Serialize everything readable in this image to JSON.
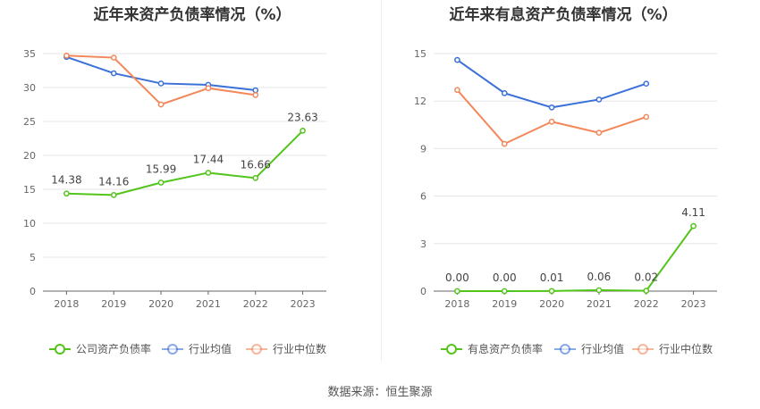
{
  "source": "数据来源：恒生聚源",
  "chart_data": [
    {
      "type": "line",
      "title": "近年来资产负债率情况（%）",
      "x": [
        "2018",
        "2019",
        "2020",
        "2021",
        "2022",
        "2023"
      ],
      "ylim": [
        0,
        35
      ],
      "yticks": [
        "0",
        "5",
        "10",
        "15",
        "20",
        "25",
        "30",
        "35"
      ],
      "grid": true,
      "legend_position": "bottom",
      "series": [
        {
          "name": "公司资产负债率",
          "color": "#52c41a",
          "values": [
            14.38,
            14.16,
            15.99,
            17.44,
            16.66,
            23.63
          ],
          "labels": [
            "14.38",
            "14.16",
            "15.99",
            "17.44",
            "16.66",
            "23.63"
          ]
        },
        {
          "name": "行业均值",
          "color": "#3a70d8",
          "values": [
            34.5,
            32.1,
            30.6,
            30.4,
            29.6,
            null
          ]
        },
        {
          "name": "行业中位数",
          "color": "#f4875a",
          "values": [
            34.7,
            34.4,
            27.5,
            29.9,
            28.9,
            null
          ]
        }
      ]
    },
    {
      "type": "line",
      "title": "近年来有息资产负债率情况（%）",
      "x": [
        "2018",
        "2019",
        "2020",
        "2021",
        "2022",
        "2023"
      ],
      "ylim": [
        0,
        15
      ],
      "yticks": [
        "0",
        "3",
        "6",
        "9",
        "12",
        "15"
      ],
      "grid": true,
      "legend_position": "bottom",
      "series": [
        {
          "name": "有息资产负债率",
          "color": "#52c41a",
          "values": [
            0.0,
            0.0,
            0.01,
            0.06,
            0.02,
            4.11
          ],
          "labels": [
            "0.00",
            "0.00",
            "0.01",
            "0.06",
            "0.02",
            "4.11"
          ]
        },
        {
          "name": "行业均值",
          "color": "#3a70d8",
          "values": [
            14.6,
            12.5,
            11.6,
            12.1,
            13.1,
            null
          ]
        },
        {
          "name": "行业中位数",
          "color": "#f4875a",
          "values": [
            12.7,
            9.3,
            10.7,
            10.0,
            11.0,
            null
          ]
        }
      ]
    }
  ]
}
